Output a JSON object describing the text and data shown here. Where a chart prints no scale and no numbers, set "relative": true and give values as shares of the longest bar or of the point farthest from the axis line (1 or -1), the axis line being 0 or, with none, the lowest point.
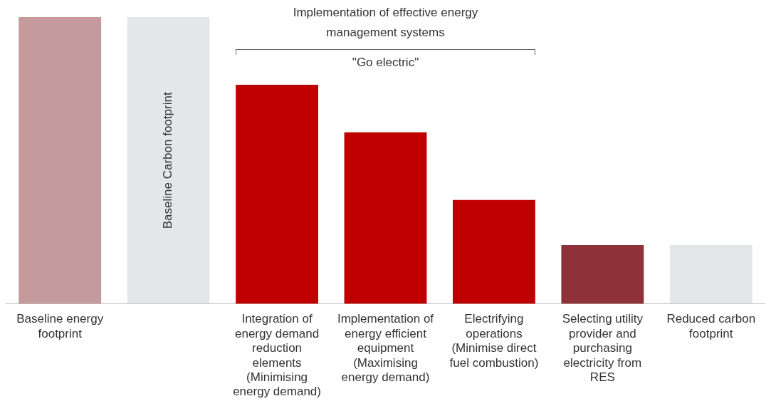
{
  "chart_data": {
    "type": "bar",
    "relative": true,
    "categories": [
      "Baseline energy footprint",
      null,
      "Integration of energy demand reduction elements (Minimising energy demand)",
      "Implementation of energy efficient equipment (Maximising energy demand)",
      "Electrifying operations (Minimise direct fuel combustion)",
      "Selecting utility provider and purchasing electricity from RES",
      "Reduced carbon footprint"
    ],
    "values": [
      1,
      1,
      0.764,
      0.598,
      0.362,
      0.205,
      0.205
    ],
    "colors": [
      "#c49a9c",
      "#e5e6e8",
      "#c00000",
      "#c00000",
      "#c00000",
      "#8e3138",
      "#e5e6e8"
    ],
    "annotations": [
      "Implementation of effective energy management systems",
      "\"Go electric\"",
      "Baseline Carbon footprint"
    ],
    "grid": false,
    "legend": false
  }
}
